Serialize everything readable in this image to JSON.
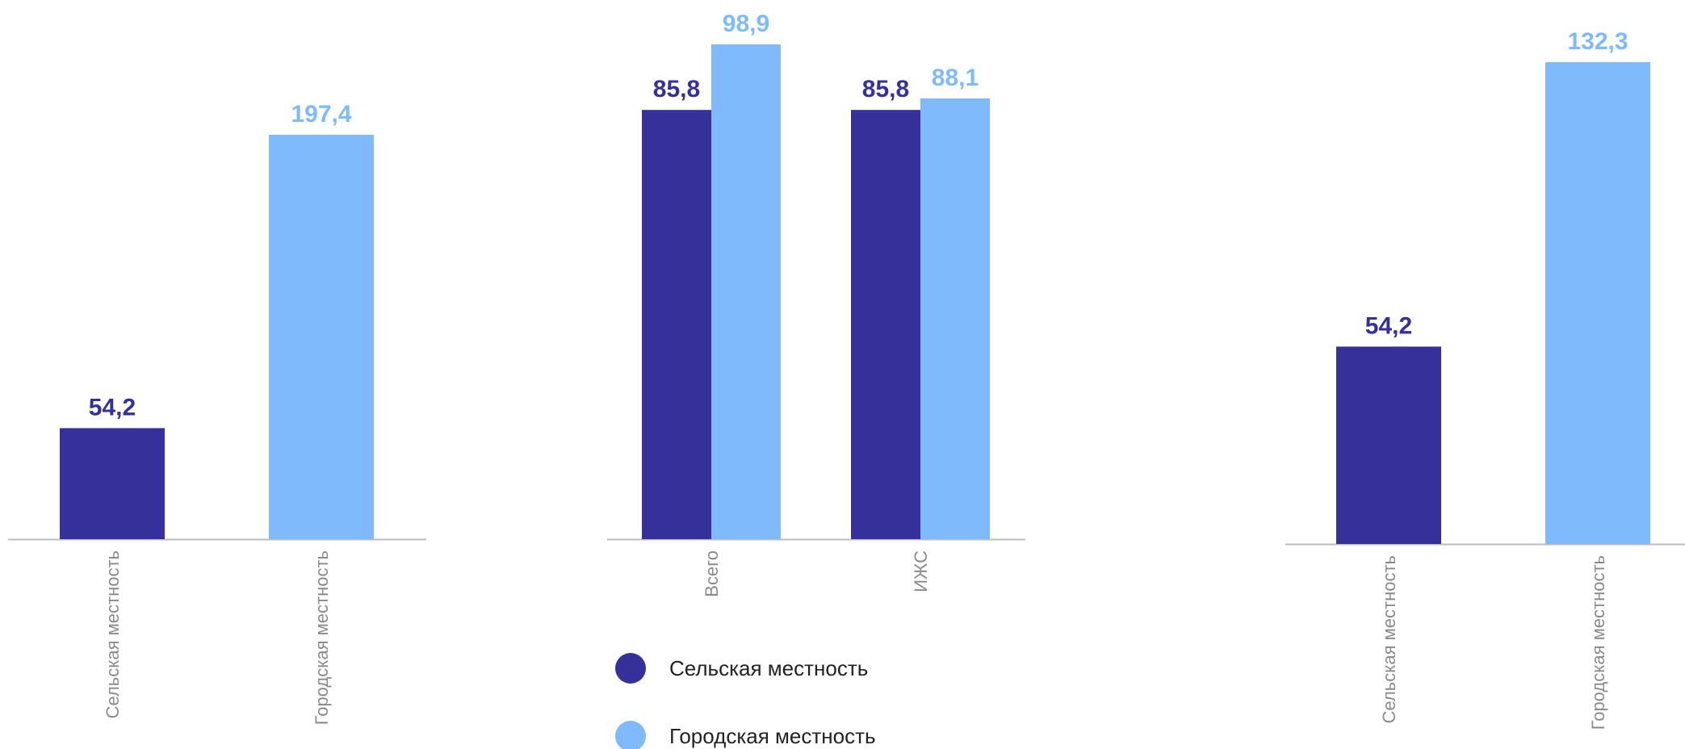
{
  "colors": {
    "rural": "#35309a",
    "urban": "#7fbbfc",
    "axis": "#bdbdbd",
    "tick_text": "#8a8a8a"
  },
  "legend": {
    "items": [
      {
        "label": "Сельская местность",
        "color": "#35309a"
      },
      {
        "label": "Городская местность",
        "color": "#7fbbfc"
      }
    ]
  },
  "chart_data": [
    {
      "type": "bar",
      "categories": [
        "Сельская местность",
        "Городская местность"
      ],
      "values": [
        54.2,
        197.4
      ],
      "value_labels": [
        "54,2",
        "197,4"
      ],
      "colors": [
        "#35309a",
        "#7fbbfc"
      ],
      "ylim": [
        0,
        220
      ],
      "grid": false
    },
    {
      "type": "bar",
      "categories": [
        "Всего",
        "ИЖС"
      ],
      "series": [
        {
          "name": "Сельская местность",
          "values": [
            85.8,
            85.8
          ],
          "value_labels": [
            "85,8",
            "85,8"
          ],
          "color": "#35309a"
        },
        {
          "name": "Городская местность",
          "values": [
            98.9,
            88.1
          ],
          "value_labels": [
            "98,9",
            "88,1"
          ],
          "color": "#7fbbfc"
        }
      ],
      "ylim": [
        0,
        100
      ],
      "grid": false,
      "legend": "bottom"
    },
    {
      "type": "bar",
      "categories": [
        "Сельская местность",
        "Городская местность"
      ],
      "values": [
        54.2,
        132.3
      ],
      "value_labels": [
        "54,2",
        "132,3"
      ],
      "colors": [
        "#35309a",
        "#7fbbfc"
      ],
      "ylim": [
        0,
        140
      ],
      "grid": false
    }
  ]
}
